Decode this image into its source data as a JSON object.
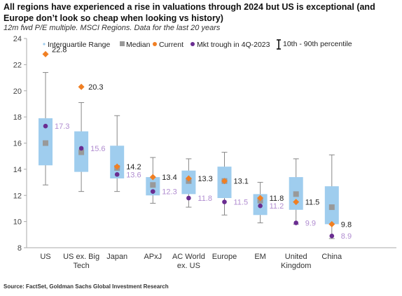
{
  "title": "All regions have experienced a rise in valuations through 2024 but US is exceptional (and Europe don’t look so cheap when looking vs history)",
  "subtitle": "12m fwd P/E multiple. MSCI Regions. Data for the last 20 years",
  "source": "Source: FactSet, Goldman Sachs Global Investment Research",
  "colors": {
    "iqr": "#9fcdee",
    "median": "#999999",
    "current": "#f07f23",
    "trough": "#6a2d91",
    "trough_label": "#b08cd0",
    "whisker": "#888888"
  },
  "legend": {
    "iqr": "Interquartile Range",
    "median": "Median",
    "current": "Current",
    "trough": "Mkt trough in 4Q-2023",
    "percentile": "10th - 90th percentile",
    "percentile_icon": "I-beam-icon"
  },
  "chart_data": {
    "type": "box",
    "y_axis": {
      "min": 8,
      "max": 24,
      "ticks": [
        8,
        10,
        12,
        14,
        16,
        18,
        20,
        22,
        24
      ]
    },
    "grid": false,
    "categories": [
      {
        "name": [
          "US"
        ],
        "p10": 12.8,
        "q1": 14.3,
        "median": 16.0,
        "q3": 17.9,
        "p90": 21.4,
        "current": 22.8,
        "trough": 17.3,
        "current_label": "22.8",
        "trough_label": "17.3"
      },
      {
        "name": [
          "US ex. Big",
          "Tech"
        ],
        "p10": 12.3,
        "q1": 13.8,
        "median": 15.3,
        "q3": 16.9,
        "p90": 19.1,
        "current": 20.3,
        "trough": 15.6,
        "current_label": "20.3",
        "trough_label": "15.6"
      },
      {
        "name": [
          "Japan"
        ],
        "p10": 12.3,
        "q1": 13.3,
        "median": 14.1,
        "q3": 15.8,
        "p90": 18.1,
        "current": 14.2,
        "trough": 13.6,
        "current_label": "14.2",
        "trough_label": "13.6"
      },
      {
        "name": [
          "APxJ"
        ],
        "p10": 11.4,
        "q1": 12.0,
        "median": 12.8,
        "q3": 13.4,
        "p90": 14.9,
        "current": 13.4,
        "trough": 12.3,
        "current_label": "13.4",
        "trough_label": "12.3"
      },
      {
        "name": [
          "AC World",
          "ex. US"
        ],
        "p10": 11.1,
        "q1": 12.1,
        "median": 13.1,
        "q3": 13.9,
        "p90": 14.8,
        "current": 13.3,
        "trough": 11.8,
        "current_label": "13.3",
        "trough_label": "11.8"
      },
      {
        "name": [
          "Europe"
        ],
        "p10": 10.5,
        "q1": 11.8,
        "median": 13.1,
        "q3": 14.2,
        "p90": 15.3,
        "current": 13.1,
        "trough": 11.5,
        "current_label": "13.1",
        "trough_label": "11.5"
      },
      {
        "name": [
          "EM"
        ],
        "p10": 9.9,
        "q1": 10.5,
        "median": 11.6,
        "q3": 12.1,
        "p90": 13.0,
        "current": 11.8,
        "trough": 11.2,
        "current_label": "11.8",
        "trough_label": "11.2"
      },
      {
        "name": [
          "United",
          "Kingdom"
        ],
        "p10": 9.8,
        "q1": 10.9,
        "median": 12.1,
        "q3": 13.4,
        "p90": 14.8,
        "current": 11.5,
        "trough": 9.9,
        "current_label": "11.5",
        "trough_label": "9.9"
      },
      {
        "name": [
          "China"
        ],
        "p10": 8.7,
        "q1": 9.8,
        "median": 11.1,
        "q3": 12.7,
        "p90": 15.1,
        "current": 9.8,
        "trough": 8.9,
        "current_label": "9.8",
        "trough_label": "8.9"
      }
    ]
  }
}
